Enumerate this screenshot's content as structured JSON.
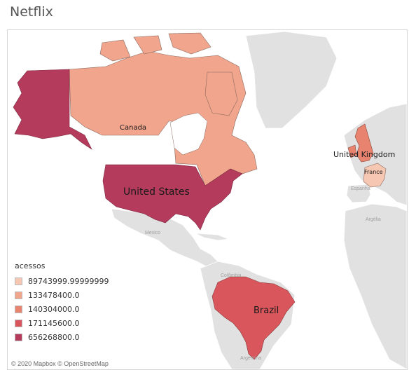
{
  "title": "Netflix",
  "legend": {
    "title": "acessos",
    "items": [
      {
        "label": "89743999.99999999",
        "color": "#f6c7b2"
      },
      {
        "label": "133478400.0",
        "color": "#f0a58c"
      },
      {
        "label": "140304000.0",
        "color": "#e8836f"
      },
      {
        "label": "171145600.0",
        "color": "#d9565c"
      },
      {
        "label": "656268800.0",
        "color": "#b53b5c"
      }
    ]
  },
  "countries": [
    {
      "name": "United States",
      "acessos": 656268800.0,
      "color": "#b53b5c"
    },
    {
      "name": "Brazil",
      "acessos": 171145600.0,
      "color": "#d9565c"
    },
    {
      "name": "United Kingdom",
      "acessos": 140304000.0,
      "color": "#e8836f"
    },
    {
      "name": "Canada",
      "acessos": 133478400.0,
      "color": "#f0a58c"
    },
    {
      "name": "France",
      "acessos": 89743999.99999999,
      "color": "#f6c7b2"
    }
  ],
  "basemap_labels": {
    "mexico": "Mexico",
    "colombia": "Colômbia",
    "argentina_south": "Argentina",
    "argentina_north": "Argélia",
    "spain": "Espanha"
  },
  "attribution": "© 2020 Mapbox © OpenStreetMap"
}
